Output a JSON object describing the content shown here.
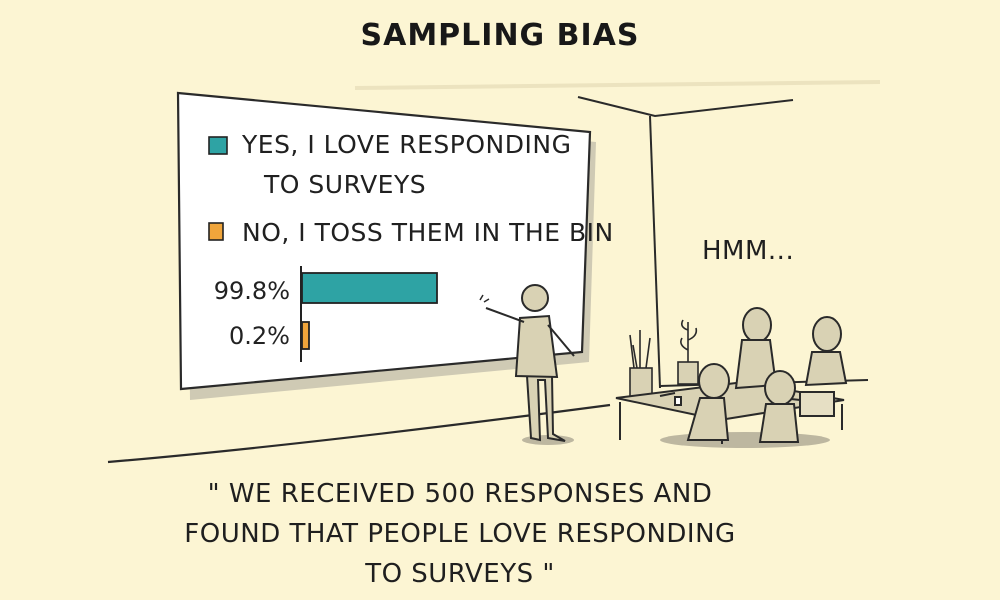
{
  "title": "SAMPLING BIAS",
  "board": {
    "legend": [
      {
        "label_line1": "YES, I LOVE RESPONDING",
        "label_line2": "TO SURVEYS",
        "color": "#2ea3a4"
      },
      {
        "label_line1": "NO, I TOSS THEM IN THE BIN",
        "color": "#f0a53b"
      }
    ],
    "bars": [
      {
        "value_label": "99.8%",
        "value": 99.8,
        "color": "#2ea3a4"
      },
      {
        "value_label": "0.2%",
        "value": 0.2,
        "color": "#f0a53b"
      }
    ]
  },
  "audience": {
    "speech": "HMM..."
  },
  "caption": {
    "line1": "\" WE RECEIVED 500 RESPONSES AND",
    "line2": "FOUND THAT PEOPLE LOVE RESPONDING",
    "line3": "TO SURVEYS \""
  }
}
